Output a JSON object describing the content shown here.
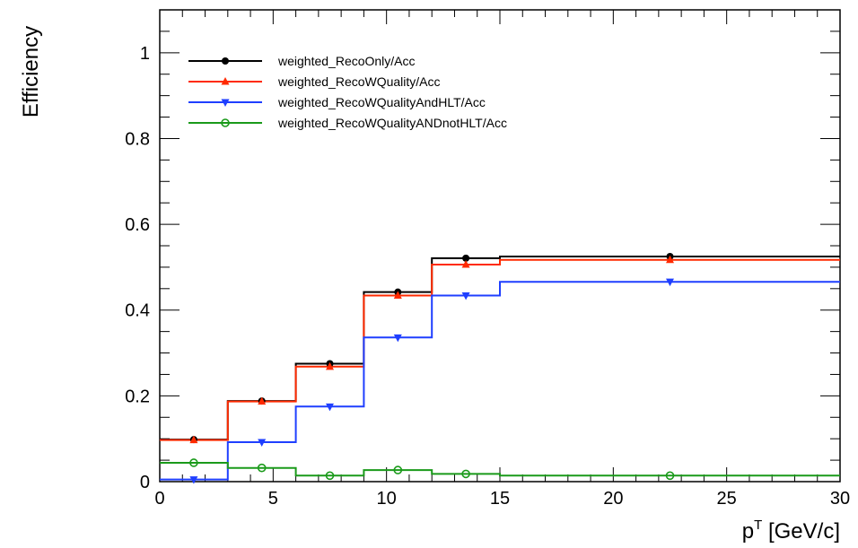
{
  "chart_data": {
    "type": "line",
    "title": "",
    "xlabel": "p",
    "xlabel_sup": "T",
    "xlabel_unit": " [GeV/c]",
    "ylabel": "Efficiency",
    "xlim": [
      0,
      30
    ],
    "ylim": [
      0,
      1.1
    ],
    "xticks": [
      "0",
      "5",
      "10",
      "15",
      "20",
      "25",
      "30"
    ],
    "yticks": [
      "0",
      "0.2",
      "0.4",
      "0.6",
      "0.8",
      "1"
    ],
    "legend_position": "top-left",
    "grid": false,
    "bin_edges": [
      0,
      3,
      6,
      9,
      12,
      15,
      30
    ],
    "bin_centers": [
      1.5,
      4.5,
      7.5,
      10.5,
      13.5,
      22.5
    ],
    "series": [
      {
        "name": "weighted_RecoOnly/Acc",
        "color": "#000000",
        "marker": "filled-circle",
        "values": [
          0.098,
          0.188,
          0.275,
          0.442,
          0.521,
          0.525
        ]
      },
      {
        "name": "weighted_RecoWQuality/Acc",
        "color": "#ff2a00",
        "marker": "filled-triangle-up",
        "values": [
          0.097,
          0.187,
          0.268,
          0.434,
          0.506,
          0.517
        ]
      },
      {
        "name": "weighted_RecoWQualityAndHLT/Acc",
        "color": "#1f3fff",
        "marker": "filled-triangle-down",
        "values": [
          0.005,
          0.092,
          0.175,
          0.336,
          0.434,
          0.466
        ]
      },
      {
        "name": "weighted_RecoWQualityANDnotHLT/Acc",
        "color": "#1a9a1a",
        "marker": "open-circle",
        "values": [
          0.044,
          0.032,
          0.014,
          0.027,
          0.018,
          0.014
        ]
      }
    ]
  }
}
